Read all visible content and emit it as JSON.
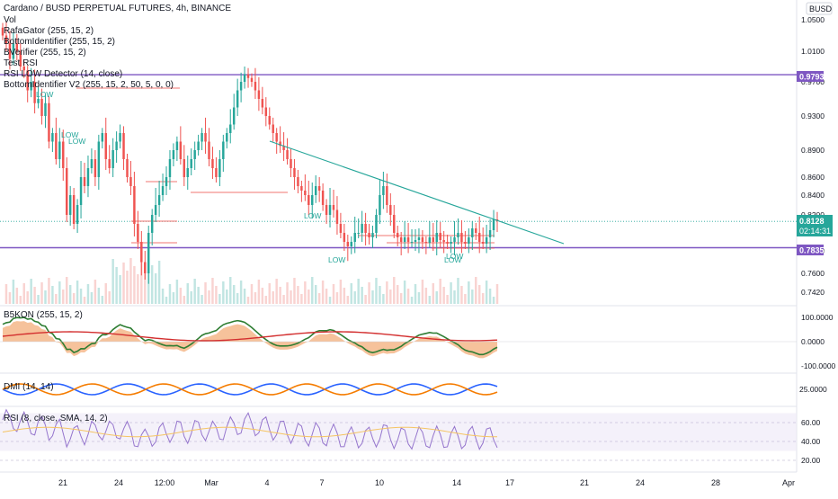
{
  "header": {
    "title": "Cardano / BUSD PERPETUAL FUTURES, 4h, BINANCE",
    "indicators": [
      "Vol",
      "RafaGator (255, 15, 2)",
      "BottomIdentifier (255, 15, 2)",
      "BVerifier (255, 15, 2)",
      "Test RSI",
      "RSI LOW Detector (14, close)",
      "BottomIdentifier V2 (255, 15, 2, 50, 5, 0, 0)"
    ]
  },
  "price_axis": {
    "currency": "BUSD",
    "ticks": [
      "1.0500",
      "1.0100",
      "0.9700",
      "0.9300",
      "0.8900",
      "0.8600",
      "0.8400",
      "0.8200",
      "0.7800",
      "0.7600",
      "0.7420"
    ]
  },
  "price_tags": {
    "upper_level": "0.9793",
    "current_price": "0.8128",
    "countdown": "02:14:31",
    "lower_level": "0.7835"
  },
  "annotations": [
    "LOW",
    "LOW",
    "LOW",
    "LOW",
    "LOW",
    "LOW",
    "LOW"
  ],
  "panes": {
    "b5kon": {
      "label": "B5KON (255, 15, 2)",
      "ticks": [
        "100.0000",
        "0.0000",
        "-100.0000"
      ]
    },
    "dmi": {
      "label": "DMI (14, 14)",
      "ticks": [
        "25.0000"
      ]
    },
    "rsi": {
      "label": "RSI (8, close, SMA, 14, 2)",
      "ticks": [
        "60.00",
        "40.00",
        "20.00"
      ]
    }
  },
  "time_axis": {
    "labels": [
      "21",
      "24",
      "12:00",
      "Mar",
      "4",
      "7",
      "10",
      "14",
      "17",
      "21",
      "24",
      "28",
      "Apr"
    ]
  },
  "colors": {
    "up": "#26a69a",
    "down": "#ef5350",
    "level": "#7e57c2",
    "trendline": "#26a69a",
    "rsi": "#9575cd",
    "rsi_sma": "#f5c463",
    "dmi_plus": "#2962ff",
    "dmi_minus": "#f57c00"
  },
  "chart_data": {
    "type": "candlestick",
    "x_unit": "bar index (4h candles)",
    "closes": [
      1.03,
      1.02,
      1.0,
      1.02,
      1.01,
      0.99,
      0.985,
      0.96,
      0.97,
      0.945,
      0.95,
      0.93,
      0.945,
      0.9,
      0.91,
      0.88,
      0.9,
      0.87,
      0.82,
      0.84,
      0.81,
      0.83,
      0.86,
      0.85,
      0.87,
      0.88,
      0.86,
      0.9,
      0.91,
      0.88,
      0.87,
      0.89,
      0.9,
      0.91,
      0.88,
      0.86,
      0.85,
      0.81,
      0.79,
      0.77,
      0.76,
      0.8,
      0.82,
      0.83,
      0.84,
      0.85,
      0.86,
      0.88,
      0.89,
      0.9,
      0.88,
      0.86,
      0.87,
      0.88,
      0.89,
      0.9,
      0.91,
      0.9,
      0.88,
      0.87,
      0.86,
      0.88,
      0.9,
      0.91,
      0.92,
      0.94,
      0.96,
      0.97,
      0.98,
      0.975,
      0.97,
      0.96,
      0.95,
      0.94,
      0.93,
      0.92,
      0.91,
      0.9,
      0.895,
      0.89,
      0.88,
      0.87,
      0.86,
      0.85,
      0.845,
      0.84,
      0.83,
      0.84,
      0.85,
      0.845,
      0.83,
      0.82,
      0.83,
      0.825,
      0.81,
      0.8,
      0.79,
      0.785,
      0.79,
      0.8,
      0.8,
      0.81,
      0.8,
      0.795,
      0.8,
      0.82,
      0.84,
      0.85,
      0.83,
      0.82,
      0.8,
      0.795,
      0.79,
      0.795,
      0.79,
      0.79,
      0.792,
      0.795,
      0.79,
      0.789,
      0.795,
      0.79,
      0.8,
      0.792,
      0.79,
      0.788,
      0.79,
      0.795,
      0.8,
      0.79,
      0.788,
      0.795,
      0.805,
      0.8,
      0.79,
      0.788,
      0.795,
      0.803,
      0.815,
      0.813
    ],
    "levels": [
      0.9793,
      0.7835
    ],
    "current_price": 0.8128,
    "y_ticks": [
      1.05,
      1.01,
      0.97,
      0.93,
      0.89,
      0.86,
      0.84,
      0.82,
      0.78,
      0.76,
      0.742
    ],
    "rsi_guides": [
      60,
      40,
      20
    ],
    "x_tick_labels": [
      "21",
      "24",
      "12:00",
      "Mar",
      "4",
      "7",
      "10",
      "14",
      "17",
      "21",
      "24",
      "28",
      "Apr"
    ]
  }
}
